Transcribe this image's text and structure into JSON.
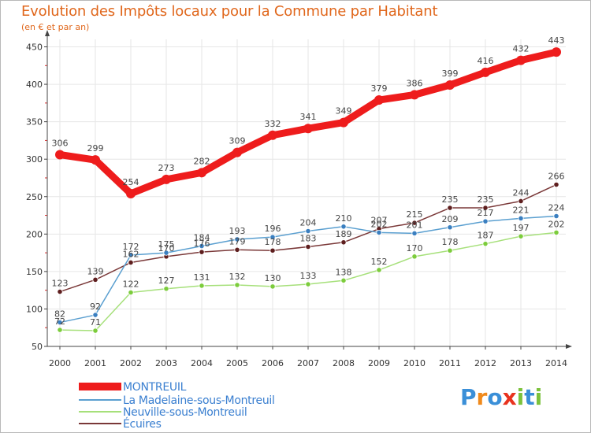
{
  "header": {
    "title": "Evolution des Impôts locaux pour la Commune par Habitant",
    "subtitle": "(en € et par an)"
  },
  "colors": {
    "title": "#e0671c",
    "axis": "#444444",
    "gridline": "#e6e6e6",
    "tick_mark": "#e03030"
  },
  "chart_data": {
    "type": "line",
    "title": "Evolution des Impôts locaux pour la Commune par Habitant",
    "subtitle": "(en € et par an)",
    "xlabel": "",
    "ylabel": "",
    "x": [
      "2000",
      "2001",
      "2002",
      "2003",
      "2004",
      "2005",
      "2006",
      "2007",
      "2008",
      "2009",
      "2010",
      "2011",
      "2012",
      "2013",
      "2014"
    ],
    "ylim": [
      50,
      460
    ],
    "yticks": [
      50,
      100,
      150,
      200,
      250,
      300,
      350,
      400,
      450
    ],
    "grid": true,
    "legend_position": "bottom-left",
    "series": [
      {
        "name": "MONTREUIL",
        "values": [
          306,
          299,
          254,
          273,
          282,
          309,
          332,
          341,
          349,
          379,
          386,
          399,
          416,
          432,
          443
        ],
        "color": "#ee1c1c",
        "style": "thick"
      },
      {
        "name": "La Madelaine-sous-Montreuil",
        "values": [
          82,
          92,
          172,
          175,
          184,
          193,
          196,
          204,
          210,
          202,
          201,
          209,
          217,
          221,
          224
        ],
        "color": "#5a9fd0",
        "marker": "#3a7fc0"
      },
      {
        "name": "Neuville-sous-Montreuil",
        "values": [
          72,
          71,
          122,
          127,
          131,
          132,
          130,
          133,
          138,
          152,
          170,
          178,
          187,
          197,
          202
        ],
        "color": "#a6e07a",
        "marker": "#7ccc3c"
      },
      {
        "name": "Écuires",
        "values": [
          123,
          139,
          162,
          170,
          176,
          179,
          178,
          183,
          189,
          207,
          215,
          235,
          235,
          244,
          266
        ],
        "color": "#7a3838",
        "marker": "#5e1e1e"
      }
    ]
  },
  "legend": {
    "items": [
      {
        "label": "MONTREUIL",
        "color": "#ee1c1c",
        "text_color": "#3a7fd0"
      },
      {
        "label": "La Madelaine-sous-Montreuil",
        "color": "#5a9fd0",
        "text_color": "#3a7fd0"
      },
      {
        "label": "Neuville-sous-Montreuil",
        "color": "#a6e07a",
        "text_color": "#3a7fd0"
      },
      {
        "label": "Écuires",
        "color": "#7a3838",
        "text_color": "#3a7fd0"
      }
    ]
  },
  "logo": {
    "text": "Proxiti",
    "letter_colors": [
      "#3a8fd8",
      "#f08a1c",
      "#3a8fd8",
      "#e8321e",
      "#7cc23c",
      "#3a8fd8",
      "#7cc23c"
    ]
  }
}
